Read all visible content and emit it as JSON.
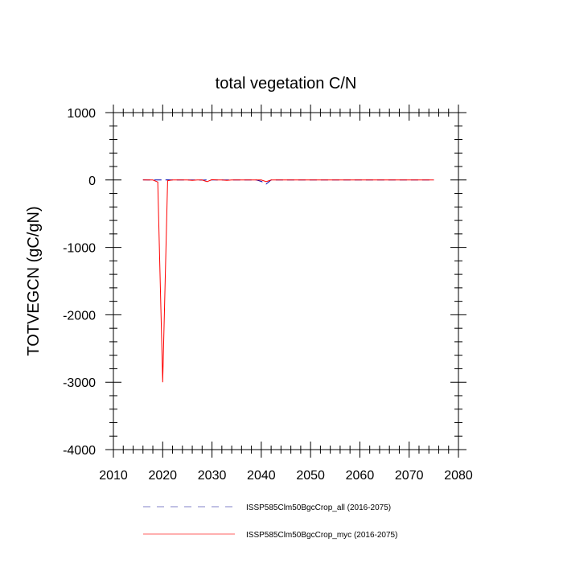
{
  "chart_data": {
    "type": "line",
    "title": "total vegetation C/N",
    "xlabel": "",
    "ylabel": "TOTVEGCN  (gC/gN)",
    "xlim": [
      2010,
      2080
    ],
    "ylim": [
      -4000,
      1000
    ],
    "x_ticks": [
      2010,
      2020,
      2030,
      2040,
      2050,
      2060,
      2070,
      2080
    ],
    "y_ticks": [
      1000,
      0,
      -1000,
      -2000,
      -3000,
      -4000
    ],
    "x_minor_step": 2,
    "y_minor_step": 200,
    "grid": false,
    "legend_position": "bottom",
    "series": [
      {
        "name": "ISSP585Clm50BgcCrop_all (2016-2075)",
        "color": "#0000aa",
        "legend_color": "#8080c8",
        "dash": "dashed",
        "x": [
          2016,
          2017,
          2018,
          2019,
          2020,
          2021,
          2022,
          2023,
          2024,
          2025,
          2026,
          2027,
          2028,
          2029,
          2030,
          2031,
          2032,
          2033,
          2034,
          2035,
          2036,
          2037,
          2038,
          2039,
          2040,
          2041,
          2042,
          2043,
          2044,
          2045,
          2046,
          2047,
          2048,
          2049,
          2050,
          2051,
          2052,
          2053,
          2054,
          2055,
          2056,
          2057,
          2058,
          2059,
          2060,
          2061,
          2062,
          2063,
          2064,
          2065,
          2066,
          2067,
          2068,
          2069,
          2070,
          2071,
          2072,
          2073,
          2074,
          2075
        ],
        "y": [
          2,
          0,
          0,
          1,
          0,
          2,
          0,
          0,
          0,
          1,
          0,
          0,
          -1,
          0,
          0,
          0,
          1,
          0,
          0,
          0,
          0,
          0,
          0,
          0,
          -20,
          -60,
          0,
          0,
          0,
          0,
          0,
          0,
          0,
          0,
          0,
          0,
          0,
          0,
          0,
          0,
          0,
          0,
          0,
          0,
          0,
          0,
          0,
          0,
          0,
          0,
          0,
          0,
          0,
          0,
          0,
          0,
          0,
          0,
          0,
          0
        ]
      },
      {
        "name": "ISSP585Clm50BgcCrop_myc (2016-2075)",
        "color": "#ff0000",
        "legend_color": "#ff6060",
        "dash": "solid",
        "x": [
          2016,
          2017,
          2018,
          2019,
          2020,
          2021,
          2022,
          2023,
          2024,
          2025,
          2026,
          2027,
          2028,
          2029,
          2030,
          2031,
          2032,
          2033,
          2034,
          2035,
          2036,
          2037,
          2038,
          2039,
          2040,
          2041,
          2042,
          2043,
          2044,
          2045,
          2046,
          2047,
          2048,
          2049,
          2050,
          2051,
          2052,
          2053,
          2054,
          2055,
          2056,
          2057,
          2058,
          2059,
          2060,
          2061,
          2062,
          2063,
          2064,
          2065,
          2066,
          2067,
          2068,
          2069,
          2070,
          2071,
          2072,
          2073,
          2074,
          2075
        ],
        "y": [
          0,
          0,
          0,
          -30,
          -3000,
          -10,
          0,
          0,
          0,
          0,
          -5,
          0,
          0,
          -25,
          5,
          0,
          0,
          -5,
          0,
          0,
          0,
          0,
          0,
          0,
          0,
          -25,
          0,
          0,
          0,
          0,
          0,
          0,
          0,
          0,
          0,
          0,
          0,
          0,
          0,
          0,
          0,
          0,
          0,
          0,
          0,
          0,
          0,
          0,
          0,
          0,
          0,
          0,
          0,
          0,
          0,
          0,
          0,
          0,
          0,
          0
        ]
      }
    ]
  }
}
